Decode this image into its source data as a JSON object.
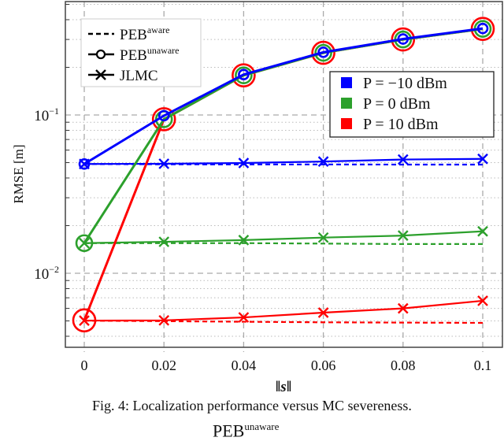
{
  "chart_data": {
    "type": "line",
    "xlabel": "‖s‖",
    "ylabel": "RMSE [m]",
    "yscale": "log",
    "ylim": [
      0.0034,
      0.52
    ],
    "xlim": [
      -0.005,
      0.1005
    ],
    "grid": true,
    "x": [
      0,
      0.02,
      0.04,
      0.06,
      0.08,
      0.1
    ],
    "xticks": [
      "0",
      "0.02",
      "0.04",
      "0.06",
      "0.08",
      "0.1"
    ],
    "yticks": [
      {
        "value": 0.1,
        "base": "10",
        "exp": "−1"
      },
      {
        "value": 0.01,
        "base": "10",
        "exp": "−2"
      }
    ],
    "style_legend": {
      "placement": "top-left",
      "entries": [
        {
          "label": "PEB",
          "sup": "aware",
          "style": "dashed"
        },
        {
          "label": "PEB",
          "sup": "unaware",
          "style": "solid-circle"
        },
        {
          "label": "JLMC",
          "style": "solid-cross"
        }
      ]
    },
    "color_legend": {
      "placement": "top-right",
      "entries": [
        {
          "label": "P = −10 dBm",
          "color": "#0000ff"
        },
        {
          "label": "P = 0 dBm",
          "color": "#2ca02c"
        },
        {
          "label": "P = 10 dBm",
          "color": "#ff0000"
        }
      ]
    },
    "series": [
      {
        "name": "PEB unaware, P = 10 dBm",
        "color": "#ff0000",
        "kind": "unaware",
        "values": [
          0.00504,
          0.094,
          0.178,
          0.247,
          0.3,
          0.35
        ]
      },
      {
        "name": "PEB unaware, P = 0 dBm",
        "color": "#2ca02c",
        "kind": "unaware",
        "values": [
          0.0155,
          0.094,
          0.178,
          0.247,
          0.3,
          0.35
        ]
      },
      {
        "name": "PEB unaware, P = -10 dBm",
        "color": "#0000ff",
        "kind": "unaware",
        "values": [
          0.049,
          0.099,
          0.18,
          0.249,
          0.302,
          0.352
        ]
      },
      {
        "name": "PEB aware, P = -10 dBm",
        "color": "#0000ff",
        "kind": "aware",
        "values": [
          0.049,
          0.0488,
          0.0487,
          0.0487,
          0.0486,
          0.0486
        ]
      },
      {
        "name": "JLMC, P = -10 dBm",
        "color": "#0000ff",
        "kind": "jlmc",
        "values": [
          0.049,
          0.0492,
          0.0497,
          0.0508,
          0.0523,
          0.0528
        ]
      },
      {
        "name": "PEB aware, P = 0 dBm",
        "color": "#2ca02c",
        "kind": "aware",
        "values": [
          0.0155,
          0.0155,
          0.0155,
          0.0154,
          0.0153,
          0.0153
        ]
      },
      {
        "name": "JLMC, P = 0 dBm",
        "color": "#2ca02c",
        "kind": "jlmc",
        "values": [
          0.0155,
          0.0158,
          0.0162,
          0.0168,
          0.0173,
          0.0184
        ]
      },
      {
        "name": "PEB aware, P = 10 dBm",
        "color": "#ff0000",
        "kind": "aware",
        "values": [
          0.00502,
          0.00498,
          0.00494,
          0.0049,
          0.00488,
          0.00486
        ]
      },
      {
        "name": "JLMC, P = 10 dBm",
        "color": "#ff0000",
        "kind": "jlmc",
        "values": [
          0.00502,
          0.00504,
          0.00526,
          0.00564,
          0.006,
          0.0067
        ]
      }
    ]
  },
  "caption": "Fig. 4: Localization performance versus MC severeness.",
  "cut_text": {
    "main": "PEB",
    "sup": "unaware"
  }
}
